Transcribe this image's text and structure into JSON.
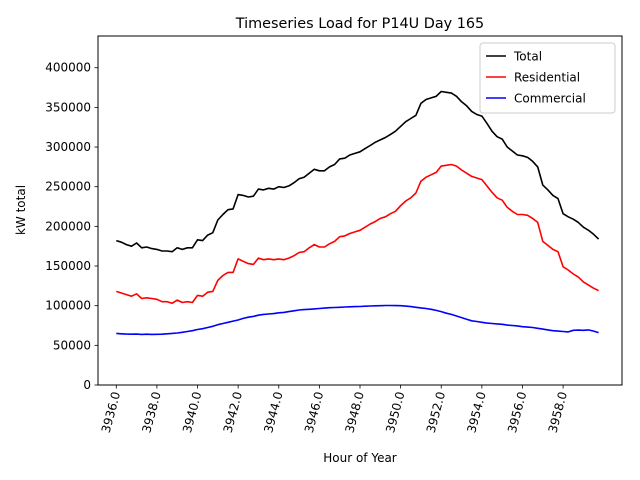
{
  "chart_data": {
    "type": "line",
    "title": "Timeseries Load for P14U   Day 165",
    "xlabel": "Hour of Year",
    "ylabel": "kW total",
    "xlim": [
      3935.1,
      3960.9
    ],
    "ylim": [
      0,
      440000
    ],
    "xticks": [
      3936,
      3938,
      3940,
      3942,
      3944,
      3946,
      3948,
      3950,
      3952,
      3954,
      3956,
      3958
    ],
    "xtick_labels": [
      "3936.0",
      "3938.0",
      "3940.0",
      "3942.0",
      "3944.0",
      "3946.0",
      "3948.0",
      "3950.0",
      "3952.0",
      "3954.0",
      "3956.0",
      "3958.0"
    ],
    "yticks": [
      0,
      50000,
      100000,
      150000,
      200000,
      250000,
      300000,
      350000,
      400000
    ],
    "ytick_labels": [
      "0",
      "50000",
      "100000",
      "150000",
      "200000",
      "250000",
      "300000",
      "350000",
      "400000"
    ],
    "legend_position": "top-right",
    "x": [
      3936,
      3936.25,
      3936.5,
      3936.75,
      3937,
      3937.25,
      3937.5,
      3937.75,
      3938,
      3938.25,
      3938.5,
      3938.75,
      3939,
      3939.25,
      3939.5,
      3939.75,
      3940,
      3940.25,
      3940.5,
      3940.75,
      3941,
      3941.25,
      3941.5,
      3941.75,
      3942,
      3942.25,
      3942.5,
      3942.75,
      3943,
      3943.25,
      3943.5,
      3943.75,
      3944,
      3944.25,
      3944.5,
      3944.75,
      3945,
      3945.25,
      3945.5,
      3945.75,
      3946,
      3946.25,
      3946.5,
      3946.75,
      3947,
      3947.25,
      3947.5,
      3947.75,
      3948,
      3948.25,
      3948.5,
      3948.75,
      3949,
      3949.25,
      3949.5,
      3949.75,
      3950,
      3950.25,
      3950.5,
      3950.75,
      3951,
      3951.25,
      3951.5,
      3951.75,
      3952,
      3952.25,
      3952.5,
      3952.75,
      3953,
      3953.25,
      3953.5,
      3953.75,
      3954,
      3954.25,
      3954.5,
      3954.75,
      3955,
      3955.25,
      3955.5,
      3955.75,
      3956,
      3956.25,
      3956.5,
      3956.75,
      3957,
      3957.25,
      3957.5,
      3957.75,
      3958,
      3958.25,
      3958.5,
      3958.75,
      3959,
      3959.25,
      3959.5,
      3959.75
    ],
    "series": [
      {
        "name": "Total",
        "color": "#000000",
        "values": [
          182000,
          180000,
          177000,
          175000,
          179000,
          173000,
          174000,
          172000,
          171000,
          169000,
          169000,
          168000,
          173000,
          171000,
          173000,
          173000,
          183000,
          182000,
          189000,
          192000,
          208000,
          215000,
          221000,
          222000,
          240000,
          239000,
          237000,
          238000,
          247000,
          246000,
          248000,
          247000,
          250000,
          249000,
          251000,
          255000,
          260000,
          262000,
          267000,
          272000,
          270000,
          270000,
          275000,
          278000,
          285000,
          286000,
          290000,
          292000,
          294000,
          298000,
          302000,
          306000,
          309000,
          312000,
          316000,
          320000,
          326000,
          332000,
          336000,
          340000,
          355000,
          360000,
          362000,
          364000,
          370000,
          369000,
          368000,
          364000,
          357000,
          352000,
          345000,
          341000,
          339000,
          330000,
          320000,
          313000,
          310000,
          300000,
          295000,
          290000,
          289000,
          287000,
          282000,
          275000,
          252000,
          246000,
          239000,
          235000,
          216000,
          212000,
          209000,
          205000,
          199000,
          195000,
          190000,
          184000
        ]
      },
      {
        "name": "Residential",
        "color": "#ff0000",
        "values": [
          118000,
          116000,
          114000,
          112000,
          115000,
          109000,
          110000,
          109000,
          108000,
          105000,
          105000,
          103000,
          107000,
          104000,
          105000,
          104000,
          113000,
          112000,
          117000,
          118000,
          132000,
          138000,
          142000,
          142000,
          159000,
          156000,
          153000,
          152000,
          160000,
          158000,
          159000,
          158000,
          159000,
          158000,
          160000,
          163000,
          167000,
          168000,
          173000,
          177000,
          174000,
          174000,
          178000,
          181000,
          187000,
          188000,
          191000,
          193000,
          195000,
          199000,
          203000,
          206000,
          210000,
          212000,
          216000,
          219000,
          226000,
          232000,
          236000,
          242000,
          257000,
          262000,
          265000,
          268000,
          276000,
          277000,
          278000,
          276000,
          271000,
          267000,
          263000,
          261000,
          259000,
          251000,
          243000,
          236000,
          233000,
          224000,
          219000,
          215000,
          215000,
          214000,
          210000,
          205000,
          181000,
          176000,
          171000,
          168000,
          149000,
          145000,
          140000,
          136000,
          130000,
          126000,
          122000,
          119000
        ]
      },
      {
        "name": "Commercial",
        "color": "#0000ff",
        "values": [
          65000,
          64500,
          64200,
          64000,
          64200,
          63800,
          64000,
          63800,
          63900,
          64000,
          64500,
          65000,
          65500,
          66500,
          67500,
          68500,
          70000,
          71000,
          72500,
          74000,
          76000,
          77500,
          79000,
          80500,
          82000,
          84000,
          85500,
          86500,
          88000,
          89000,
          89500,
          90000,
          91000,
          91500,
          92500,
          93500,
          94500,
          95000,
          95500,
          96000,
          96500,
          97000,
          97500,
          97700,
          98000,
          98300,
          98600,
          98800,
          99000,
          99300,
          99600,
          99800,
          100000,
          100200,
          100200,
          100100,
          100000,
          99500,
          98800,
          98000,
          97200,
          96500,
          95500,
          94000,
          92500,
          90500,
          89000,
          87000,
          85000,
          83000,
          81000,
          80000,
          79000,
          78000,
          77500,
          77000,
          76500,
          75500,
          75000,
          74500,
          73500,
          73000,
          72500,
          71500,
          70500,
          69500,
          68500,
          68000,
          67500,
          67000,
          69000,
          69200,
          69000,
          69500,
          68000,
          66000
        ]
      }
    ]
  }
}
